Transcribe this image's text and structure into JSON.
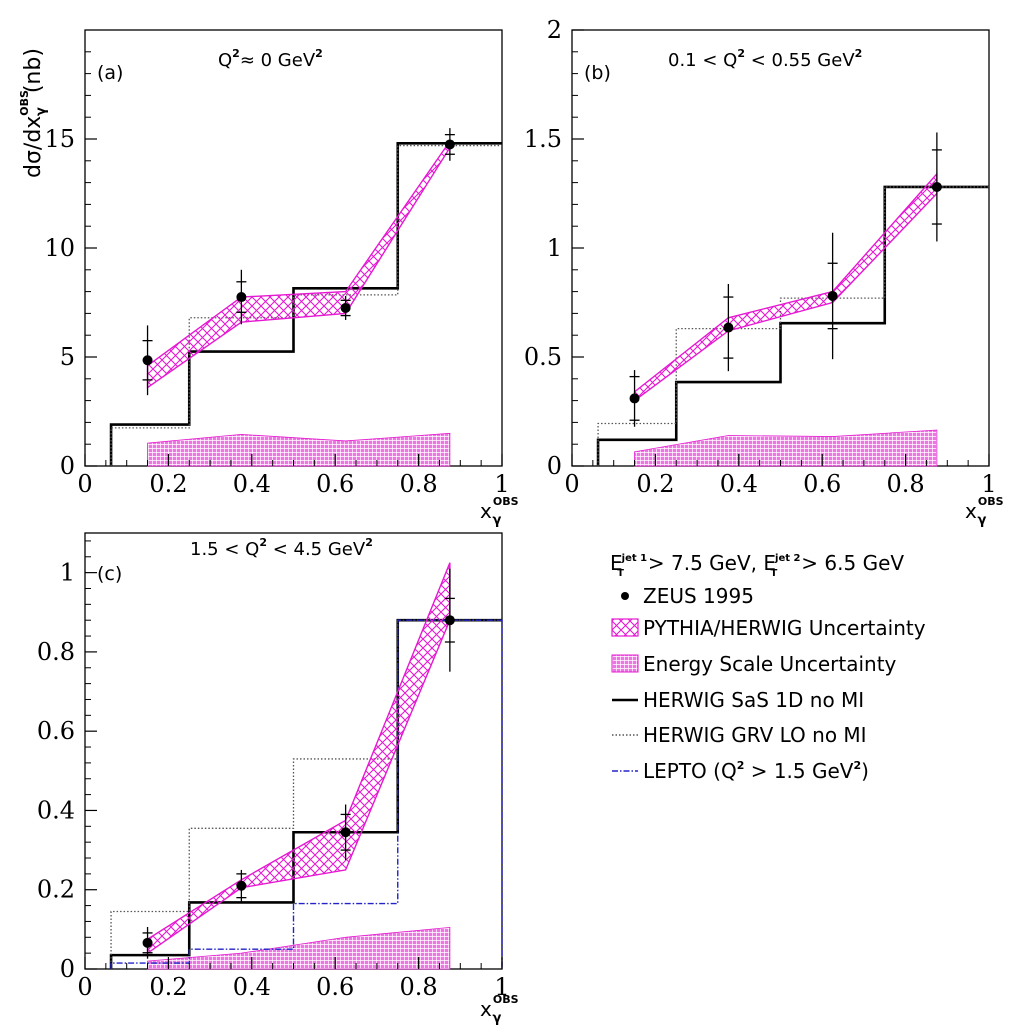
{
  "figure": {
    "ylabel": {
      "prefix": "dσ/dx",
      "sup": "OBS",
      "sub": "γ",
      "suffix": "(nb)"
    },
    "xlabel": {
      "base": "x",
      "sup": "OBS",
      "sub": "γ"
    },
    "colors": {
      "data": "#000000",
      "sas": "#000000",
      "grv": "#555555",
      "lepto": "#2323c8",
      "band": "#e619d2",
      "energy_fill": "#ec77e2"
    }
  },
  "legend": {
    "cut": {
      "e": "E",
      "t": "T",
      "jet1": "jet 1",
      "mid": "> 7.5 GeV, E",
      "jet2": "jet 2",
      "end": "> 6.5 GeV"
    },
    "items": [
      {
        "key": "data",
        "label": "ZEUS 1995"
      },
      {
        "key": "band",
        "label": "PYTHIA/HERWIG Uncertainty"
      },
      {
        "key": "energy",
        "label": "Energy Scale Uncertainty"
      },
      {
        "key": "sas",
        "label": "HERWIG SaS 1D no MI"
      },
      {
        "key": "grv",
        "label": "HERWIG GRV LO no MI"
      },
      {
        "key": "lepto",
        "label": "LEPTO (Q",
        "sup": "2",
        "after": " > 1.5 GeV",
        "sup2": "2",
        "end": ")"
      }
    ]
  },
  "chart_data": [
    {
      "id": "a",
      "type": "line",
      "tag": "(a)",
      "q2_label": {
        "pre": "Q",
        "sup": "2",
        "post": "≈ 0 GeV",
        "sup2": "2"
      },
      "xlim": [
        0,
        1
      ],
      "ylim": [
        0,
        20
      ],
      "xticks": [
        0,
        0.2,
        0.4,
        0.6,
        0.8,
        1
      ],
      "xtick_labels": [
        "0",
        "0.2",
        "0.4",
        "0.6",
        "0.8",
        "1"
      ],
      "yticks": [
        0,
        5,
        10,
        15
      ],
      "ytick_labels": [
        "0",
        "5",
        "10",
        "15"
      ],
      "bin_edges": [
        0.0625,
        0.25,
        0.5,
        0.75,
        1.0
      ],
      "series": [
        {
          "key": "sas",
          "values": [
            1.9,
            5.25,
            8.15,
            14.8
          ]
        },
        {
          "key": "grv",
          "values": [
            1.75,
            6.8,
            7.85,
            14.7
          ]
        }
      ],
      "data_points": {
        "x": [
          0.15,
          0.375,
          0.625,
          0.875
        ],
        "y": [
          4.85,
          7.75,
          7.25,
          14.75
        ],
        "stat_err": [
          0.9,
          0.7,
          0.35,
          0.45
        ],
        "tot_err": [
          1.6,
          1.25,
          0.55,
          0.75
        ]
      },
      "band": {
        "x": [
          0.15,
          0.375,
          0.625,
          0.875
        ],
        "low": [
          3.6,
          6.6,
          7.0,
          14.6
        ],
        "high": [
          4.6,
          7.75,
          8.0,
          14.9
        ]
      },
      "energy": {
        "x": [
          0.15,
          0.375,
          0.625,
          0.875
        ],
        "high": [
          1.05,
          1.45,
          1.15,
          1.5
        ]
      }
    },
    {
      "id": "b",
      "type": "line",
      "tag": "(b)",
      "q2_label": {
        "pre": "0.1 < Q",
        "sup": "2",
        "post": " < 0.55 GeV",
        "sup2": "2"
      },
      "xlim": [
        0,
        1
      ],
      "ylim": [
        0,
        2
      ],
      "xticks": [
        0,
        0.2,
        0.4,
        0.6,
        0.8,
        1
      ],
      "xtick_labels": [
        "0",
        "0.2",
        "0.4",
        "0.6",
        "0.8",
        "1"
      ],
      "yticks": [
        0,
        0.5,
        1,
        1.5,
        2
      ],
      "ytick_labels": [
        "0",
        "0.5",
        "1",
        "1.5",
        "2"
      ],
      "bin_edges": [
        0.0625,
        0.25,
        0.5,
        0.75,
        1.0
      ],
      "series": [
        {
          "key": "sas",
          "values": [
            0.12,
            0.385,
            0.655,
            1.28
          ]
        },
        {
          "key": "grv",
          "values": [
            0.195,
            0.63,
            0.77,
            1.28
          ]
        }
      ],
      "data_points": {
        "x": [
          0.15,
          0.375,
          0.625,
          0.875
        ],
        "y": [
          0.31,
          0.635,
          0.78,
          1.28
        ],
        "stat_err": [
          0.1,
          0.14,
          0.15,
          0.17
        ],
        "tot_err": [
          0.13,
          0.2,
          0.29,
          0.25
        ]
      },
      "band": {
        "x": [
          0.15,
          0.375,
          0.625,
          0.875
        ],
        "low": [
          0.3,
          0.62,
          0.75,
          1.25
        ],
        "high": [
          0.34,
          0.68,
          0.8,
          1.34
        ]
      },
      "energy": {
        "x": [
          0.15,
          0.375,
          0.625,
          0.875
        ],
        "high": [
          0.065,
          0.14,
          0.135,
          0.165
        ]
      }
    },
    {
      "id": "c",
      "type": "line",
      "tag": "(c)",
      "q2_label": {
        "pre": "1.5 < Q",
        "sup": "2",
        "post": " < 4.5 GeV",
        "sup2": "2"
      },
      "xlim": [
        0,
        1
      ],
      "ylim": [
        0,
        1.1
      ],
      "xticks": [
        0,
        0.2,
        0.4,
        0.6,
        0.8,
        1
      ],
      "xtick_labels": [
        "0",
        "0.2",
        "0.4",
        "0.6",
        "0.8",
        "1"
      ],
      "yticks": [
        0,
        0.2,
        0.4,
        0.6,
        0.8,
        1
      ],
      "ytick_labels": [
        "0",
        "0.2",
        "0.4",
        "0.6",
        "0.8",
        "1"
      ],
      "bin_edges": [
        0.0625,
        0.25,
        0.5,
        0.75,
        1.0
      ],
      "series": [
        {
          "key": "sas",
          "values": [
            0.035,
            0.168,
            0.345,
            0.88
          ]
        },
        {
          "key": "grv",
          "values": [
            0.145,
            0.355,
            0.53,
            0.88
          ]
        },
        {
          "key": "lepto",
          "values": [
            0.015,
            0.05,
            0.165,
            0.88
          ]
        }
      ],
      "data_points": {
        "x": [
          0.15,
          0.375,
          0.625,
          0.875
        ],
        "y": [
          0.066,
          0.21,
          0.345,
          0.88
        ],
        "stat_err": [
          0.025,
          0.03,
          0.045,
          0.055
        ],
        "tot_err": [
          0.04,
          0.04,
          0.07,
          0.13
        ]
      },
      "band": {
        "x": [
          0.15,
          0.375,
          0.625,
          0.875
        ],
        "low": [
          0.04,
          0.205,
          0.25,
          0.88
        ],
        "high": [
          0.075,
          0.225,
          0.375,
          1.025
        ]
      },
      "energy": {
        "x": [
          0.15,
          0.375,
          0.625,
          0.875
        ],
        "high": [
          0.02,
          0.04,
          0.08,
          0.105
        ]
      }
    }
  ]
}
